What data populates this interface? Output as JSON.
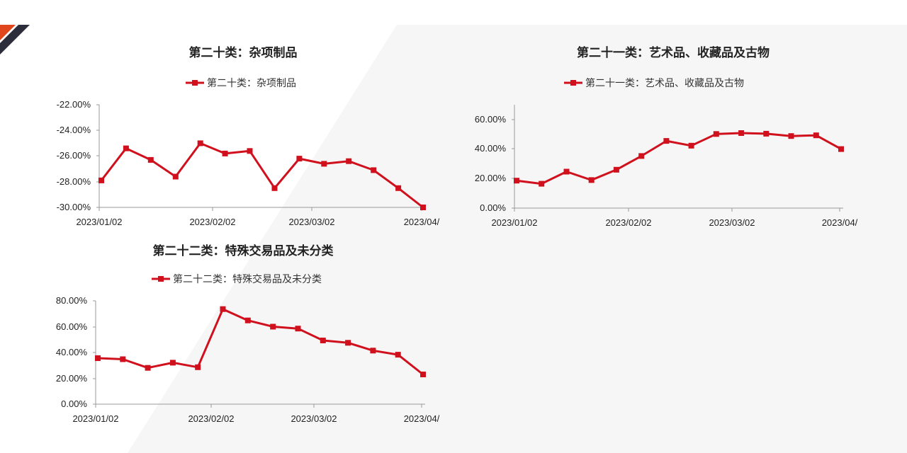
{
  "colors": {
    "series": "#d0101c",
    "accent_orange": "#e0471c",
    "accent_dark": "#2b2d3a",
    "axis": "#999999"
  },
  "chart_data": [
    {
      "type": "line",
      "title": "第二十类：杂项制品",
      "series": [
        {
          "name": "第二十类：杂项制品",
          "values": [
            -27.9,
            -25.4,
            -26.3,
            -27.6,
            -25.0,
            -25.8,
            -25.6,
            -28.5,
            -26.2,
            -26.6,
            -26.4,
            -27.1,
            -28.5,
            -30.0
          ]
        }
      ],
      "xticks": [
        "2023/01/02",
        "2023/02/02",
        "2023/03/02",
        "2023/04/"
      ],
      "yticks": [
        "-22.00%",
        "-24.00%",
        "-26.00%",
        "-28.00%",
        "-30.00%"
      ],
      "ylim": [
        -30,
        -22
      ],
      "xlabel": "",
      "ylabel": ""
    },
    {
      "type": "line",
      "title": "第二十一类：艺术品、收藏品及古物",
      "series": [
        {
          "name": "第二十一类：艺术品、收藏品及古物",
          "values": [
            18.6,
            16.5,
            24.7,
            19.0,
            26.0,
            35.3,
            45.5,
            42.3,
            50.2,
            50.8,
            50.4,
            48.8,
            49.3,
            40.0
          ]
        }
      ],
      "xticks": [
        "2023/01/02",
        "2023/02/02",
        "2023/03/02",
        "2023/04/"
      ],
      "yticks": [
        "60.00%",
        "40.00%",
        "20.00%",
        "0.00%"
      ],
      "ylim": [
        0,
        70
      ],
      "xlabel": "",
      "ylabel": ""
    },
    {
      "type": "line",
      "title": "第二十二类：特殊交易品及未分类",
      "series": [
        {
          "name": "第二十二类：特殊交易品及未分类",
          "values": [
            35.6,
            34.8,
            28.1,
            32.1,
            28.6,
            73.6,
            64.8,
            60.0,
            58.5,
            49.3,
            47.5,
            41.5,
            38.3,
            23.0
          ]
        }
      ],
      "xticks": [
        "2023/01/02",
        "2023/02/02",
        "2023/03/02",
        "2023/04/"
      ],
      "yticks": [
        "80.00%",
        "60.00%",
        "40.00%",
        "20.00%",
        "0.00%"
      ],
      "ylim": [
        0,
        80
      ],
      "xlabel": "",
      "ylabel": ""
    }
  ]
}
